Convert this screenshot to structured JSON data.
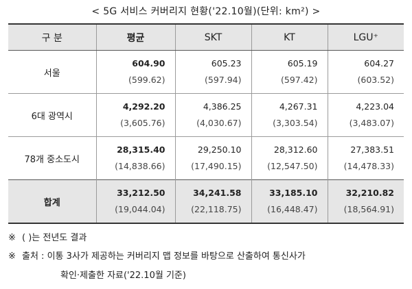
{
  "title": "< 5G 서비스 커버리지 현황('22.10월)(단위: km²) >",
  "headers": [
    "구 분",
    "평균",
    "SKT",
    "KT",
    "LGU⁺"
  ],
  "rows": [
    {
      "label": "서울",
      "avg": [
        "604.90",
        "(599.62)"
      ],
      "skt": [
        "605.23",
        "(597.94)"
      ],
      "kt": [
        "605.19",
        "(597.42)"
      ],
      "lgu": [
        "604.27",
        "(603.52)"
      ]
    },
    {
      "label": "6대 광역시",
      "avg": [
        "4,292.20",
        "(3,605.76)"
      ],
      "skt": [
        "4,386.25",
        "(4,030.67)"
      ],
      "kt": [
        "4,267.31",
        "(3,303.54)"
      ],
      "lgu": [
        "4,223.04",
        "(3,483.07)"
      ]
    },
    {
      "label": "78개 중소도시",
      "avg": [
        "28,315.40",
        "(14,838.66)"
      ],
      "skt": [
        "29,250.10",
        "(17,490.15)"
      ],
      "kt": [
        "28,312.60",
        "(12,547.50)"
      ],
      "lgu": [
        "27,383.51",
        "(14,478.33)"
      ]
    },
    {
      "label": "합계",
      "avg": [
        "33,212.50",
        "(19,044.04)"
      ],
      "skt": [
        "34,241.58",
        "(22,118.75)"
      ],
      "kt": [
        "33,185.10",
        "(16,448.47)"
      ],
      "lgu": [
        "32,210.82",
        "(18,564.91)"
      ]
    }
  ],
  "notes": {
    "mark": "※",
    "note1": "( )는 전년도 결과",
    "note2": "출처 : 이통 3사가 제공하는 커버리지 맵 정보를 바탕으로 산출하여 통신사가",
    "note3": "확인·제출한 자료('22.10월 기준)"
  },
  "colors": {
    "header_bg": "#e6e6e6",
    "total_bg": "#e6e6e6",
    "border": "#9a9a9a"
  }
}
